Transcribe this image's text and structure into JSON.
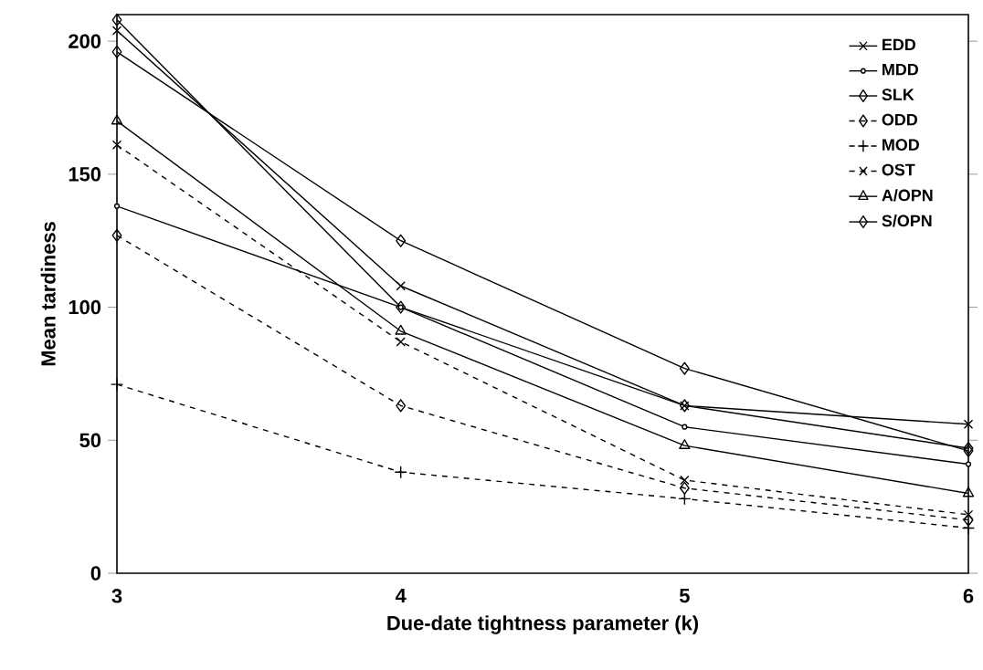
{
  "chart_data": {
    "type": "line",
    "xlabel": "Due-date tightness parameter (k)",
    "ylabel": "Mean tardiness",
    "x": [
      3,
      4,
      5,
      6
    ],
    "xlim": [
      3,
      6
    ],
    "xticks": [
      3,
      4,
      5,
      6
    ],
    "ylim": [
      0,
      210
    ],
    "yticks": [
      0,
      50,
      100,
      150,
      200
    ],
    "grid": false,
    "legend": "top right",
    "series": [
      {
        "name": "EDD",
        "color": "#000000",
        "marker": "cross",
        "line_style": "solid",
        "values": [
          204,
          108,
          63,
          56
        ]
      },
      {
        "name": "MDD",
        "color": "#000000",
        "marker": "dot",
        "line_style": "solid",
        "values": [
          138,
          100,
          55,
          41
        ]
      },
      {
        "name": "SLK",
        "color": "#000000",
        "marker": "diamond",
        "line_style": "solid",
        "values": [
          196,
          125,
          77,
          46
        ]
      },
      {
        "name": "ODD",
        "color": "#000000",
        "marker": "diamond",
        "line_style": "dashed",
        "values": [
          127,
          63,
          32,
          20
        ]
      },
      {
        "name": "MOD",
        "color": "#000000",
        "marker": "plus",
        "line_style": "dashed",
        "values": [
          71,
          38,
          28,
          17
        ]
      },
      {
        "name": "OST",
        "color": "#000000",
        "marker": "cross",
        "line_style": "dashed",
        "values": [
          161,
          87,
          35,
          22
        ]
      },
      {
        "name": "A/OPN",
        "color": "#000000",
        "marker": "triangle",
        "line_style": "solid",
        "values": [
          170,
          91,
          48,
          30
        ]
      },
      {
        "name": "S/OPN",
        "color": "#000000",
        "marker": "diamond",
        "line_style": "solid",
        "values": [
          208,
          100,
          63,
          47
        ]
      }
    ]
  }
}
